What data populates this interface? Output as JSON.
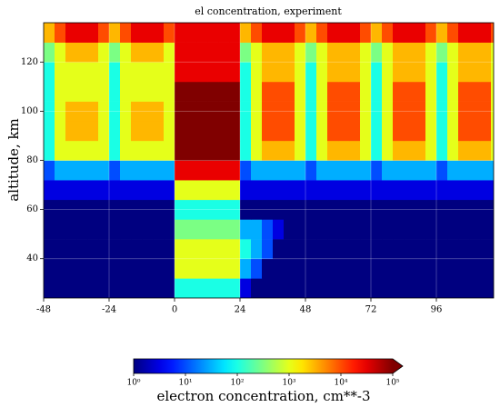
{
  "chart_data": {
    "type": "heatmap",
    "title": "el concentration, experiment",
    "y_label": "altitude, km",
    "x": [
      -48,
      -44,
      -40,
      -36,
      -32,
      -28,
      -24,
      -20,
      -16,
      -12,
      -8,
      -4,
      0,
      4,
      8,
      12,
      16,
      20,
      24,
      28,
      32,
      36,
      40,
      44,
      48,
      52,
      56,
      60,
      64,
      68,
      72,
      76,
      80,
      84,
      88,
      92,
      96,
      100,
      104,
      108,
      112,
      116,
      117
    ],
    "y": [
      24,
      32,
      40,
      48,
      56,
      64,
      72,
      80,
      88,
      96,
      104,
      112,
      120,
      128,
      136
    ],
    "xlim": [
      -48,
      117
    ],
    "ylim": [
      24,
      136
    ],
    "xticks": [
      -48,
      -24,
      0,
      24,
      48,
      72,
      96
    ],
    "yticks": [
      40,
      60,
      80,
      100,
      120
    ],
    "grid": true,
    "colormap": "jet",
    "log_color": true,
    "values": [
      [
        1,
        1,
        1,
        1,
        1,
        1,
        1,
        1,
        1,
        1,
        1,
        1,
        100,
        100,
        100,
        100,
        100,
        100,
        3,
        1,
        1,
        1,
        1,
        1,
        1,
        1,
        1,
        1,
        1,
        1,
        1,
        1,
        1,
        1,
        1,
        1,
        1,
        1,
        1,
        1,
        1,
        1
      ],
      [
        1,
        1,
        1,
        1,
        1,
        1,
        1,
        1,
        1,
        1,
        1,
        1,
        1000,
        1000,
        1000,
        1000,
        1000,
        1000,
        30,
        10,
        1,
        1,
        1,
        1,
        1,
        1,
        1,
        1,
        1,
        1,
        1,
        1,
        1,
        1,
        1,
        1,
        1,
        1,
        1,
        1,
        1,
        1
      ],
      [
        1,
        1,
        1,
        1,
        1,
        1,
        1,
        1,
        1,
        1,
        1,
        1,
        1000,
        1000,
        1000,
        1000,
        1000,
        1000,
        100,
        30,
        10,
        1,
        1,
        1,
        1,
        1,
        1,
        1,
        1,
        1,
        1,
        1,
        1,
        1,
        1,
        1,
        1,
        1,
        1,
        1,
        1,
        1
      ],
      [
        1,
        1,
        1,
        1,
        1,
        1,
        1,
        1,
        1,
        1,
        1,
        1,
        300,
        300,
        300,
        300,
        300,
        300,
        30,
        30,
        10,
        3,
        1,
        1,
        1,
        1,
        1,
        1,
        1,
        1,
        1,
        1,
        1,
        1,
        1,
        1,
        1,
        1,
        1,
        1,
        1,
        1
      ],
      [
        1,
        1,
        1,
        1,
        1,
        1,
        1,
        1,
        1,
        1,
        1,
        1,
        100,
        100,
        100,
        100,
        100,
        100,
        1,
        1,
        1,
        1,
        1,
        1,
        1,
        1,
        1,
        1,
        1,
        1,
        1,
        1,
        1,
        1,
        1,
        1,
        1,
        1,
        1,
        1,
        1,
        1
      ],
      [
        3,
        3,
        3,
        3,
        3,
        3,
        3,
        3,
        3,
        3,
        3,
        3,
        1000,
        1000,
        1000,
        1000,
        1000,
        1000,
        3,
        3,
        3,
        3,
        3,
        3,
        3,
        3,
        3,
        3,
        3,
        3,
        3,
        3,
        3,
        3,
        3,
        3,
        3,
        3,
        3,
        3,
        3,
        3
      ],
      [
        10,
        30,
        30,
        30,
        30,
        30,
        10,
        30,
        30,
        30,
        30,
        30,
        30000,
        30000,
        30000,
        30000,
        30000,
        30000,
        10,
        30,
        30,
        30,
        30,
        30,
        10,
        30,
        30,
        30,
        30,
        30,
        10,
        30,
        30,
        30,
        30,
        30,
        10,
        30,
        30,
        30,
        30,
        30
      ],
      [
        100,
        1000,
        1000,
        1000,
        1000,
        1000,
        100,
        1000,
        1000,
        1000,
        1000,
        1000,
        100000,
        100000,
        100000,
        100000,
        100000,
        100000,
        100,
        1000,
        3000,
        3000,
        3000,
        1000,
        100,
        1000,
        3000,
        3000,
        3000,
        1000,
        100,
        1000,
        3000,
        3000,
        3000,
        1000,
        100,
        1000,
        3000,
        3000,
        3000,
        1000
      ],
      [
        100,
        1000,
        3000,
        3000,
        3000,
        1000,
        100,
        1000,
        3000,
        3000,
        3000,
        1000,
        100000,
        100000,
        100000,
        100000,
        100000,
        100000,
        100,
        1000,
        10000,
        10000,
        10000,
        1000,
        100,
        1000,
        10000,
        10000,
        10000,
        1000,
        100,
        1000,
        10000,
        10000,
        10000,
        1000,
        100,
        1000,
        10000,
        10000,
        10000,
        1000
      ],
      [
        100,
        1000,
        3000,
        3000,
        3000,
        1000,
        100,
        1000,
        3000,
        3000,
        3000,
        1000,
        100000,
        100000,
        100000,
        100000,
        100000,
        100000,
        100,
        1000,
        10000,
        10000,
        10000,
        1000,
        100,
        1000,
        10000,
        10000,
        10000,
        1000,
        100,
        1000,
        10000,
        10000,
        10000,
        1000,
        100,
        1000,
        10000,
        10000,
        10000,
        1000
      ],
      [
        100,
        1000,
        1000,
        1000,
        1000,
        1000,
        100,
        1000,
        1000,
        1000,
        1000,
        1000,
        100000,
        100000,
        100000,
        100000,
        100000,
        100000,
        100,
        1000,
        10000,
        10000,
        10000,
        1000,
        100,
        1000,
        10000,
        10000,
        10000,
        1000,
        100,
        1000,
        10000,
        10000,
        10000,
        1000,
        100,
        1000,
        10000,
        10000,
        10000,
        1000
      ],
      [
        100,
        1000,
        1000,
        1000,
        1000,
        1000,
        100,
        1000,
        1000,
        1000,
        1000,
        1000,
        30000,
        30000,
        30000,
        30000,
        30000,
        30000,
        100,
        1000,
        3000,
        3000,
        3000,
        1000,
        100,
        1000,
        3000,
        3000,
        3000,
        1000,
        100,
        1000,
        3000,
        3000,
        3000,
        1000,
        100,
        1000,
        3000,
        3000,
        3000,
        1000
      ],
      [
        300,
        1000,
        3000,
        3000,
        3000,
        1000,
        300,
        1000,
        3000,
        3000,
        3000,
        1000,
        30000,
        30000,
        30000,
        30000,
        30000,
        30000,
        300,
        1000,
        3000,
        3000,
        3000,
        1000,
        300,
        1000,
        3000,
        3000,
        3000,
        1000,
        300,
        1000,
        3000,
        3000,
        3000,
        1000,
        300,
        1000,
        3000,
        3000,
        3000,
        1000
      ],
      [
        3000,
        10000,
        30000,
        30000,
        30000,
        10000,
        3000,
        10000,
        30000,
        30000,
        30000,
        10000,
        30000,
        30000,
        30000,
        30000,
        30000,
        30000,
        3000,
        10000,
        30000,
        30000,
        30000,
        10000,
        3000,
        10000,
        30000,
        30000,
        30000,
        10000,
        3000,
        10000,
        30000,
        30000,
        30000,
        10000,
        3000,
        10000,
        30000,
        30000,
        30000,
        10000
      ]
    ],
    "colorbar": {
      "label": "electron concentration, cm**-3",
      "clim": [
        1,
        100000
      ],
      "extend": "max",
      "ticks": [
        {
          "value": 1,
          "label": "10⁰"
        },
        {
          "value": 10,
          "label": "10¹"
        },
        {
          "value": 100,
          "label": "10²"
        },
        {
          "value": 1000,
          "label": "10³"
        },
        {
          "value": 10000,
          "label": "10⁴"
        },
        {
          "value": 100000,
          "label": "10⁵"
        }
      ]
    }
  }
}
